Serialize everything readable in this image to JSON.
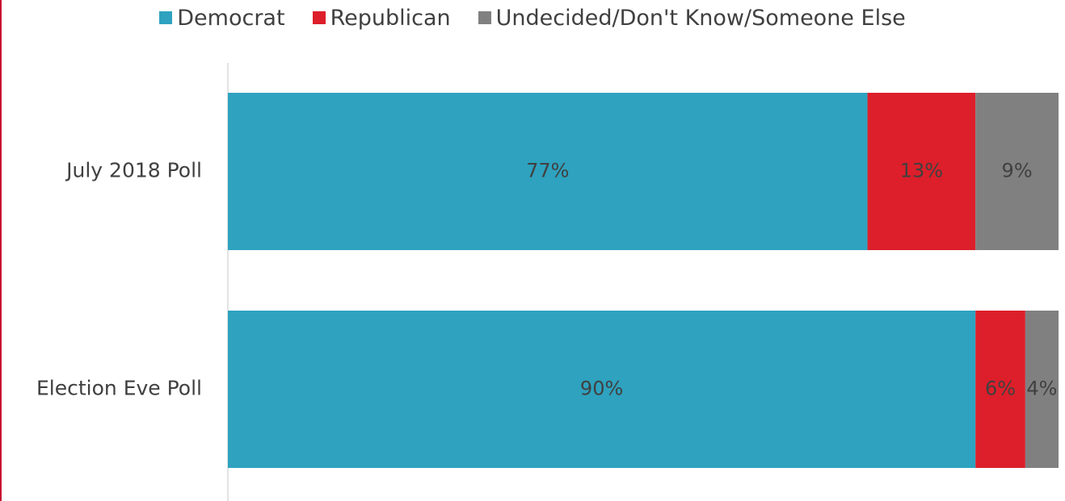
{
  "chart_data": {
    "type": "bar",
    "orientation": "horizontal",
    "stacked": true,
    "categories": [
      "July 2018 Poll",
      "Election Eve Poll"
    ],
    "series": [
      {
        "name": "Democrat",
        "color": "#2ea2bf",
        "values": [
          77,
          90
        ],
        "labels": [
          "77%",
          "90%"
        ]
      },
      {
        "name": "Republican",
        "color": "#dc1f2a",
        "values": [
          13,
          6
        ],
        "labels": [
          "13%",
          "6%"
        ]
      },
      {
        "name": "Undecided/Don't Know/Someone Else",
        "color": "#808080",
        "values": [
          9,
          4
        ],
        "labels": [
          "9%",
          "4%"
        ]
      }
    ],
    "legend_position": "top",
    "grid": false,
    "xlim": [
      0,
      100
    ]
  }
}
